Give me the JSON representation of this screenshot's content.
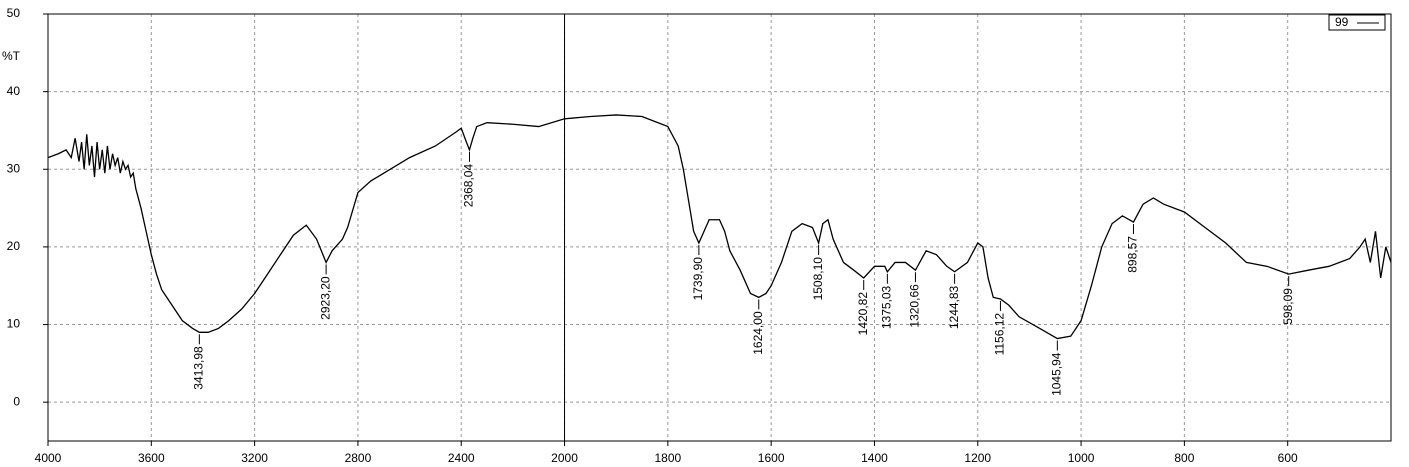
{
  "chart_data": {
    "type": "line",
    "ylabel": "%T",
    "x": [
      4000,
      3960,
      3930,
      3910,
      3895,
      3880,
      3870,
      3860,
      3850,
      3840,
      3830,
      3820,
      3810,
      3800,
      3790,
      3780,
      3770,
      3760,
      3750,
      3740,
      3730,
      3720,
      3710,
      3700,
      3690,
      3680,
      3670,
      3660,
      3640,
      3620,
      3600,
      3580,
      3560,
      3520,
      3480,
      3440,
      3413.98,
      3380,
      3340,
      3300,
      3250,
      3200,
      3150,
      3100,
      3050,
      3000,
      2960,
      2923.2,
      2900,
      2860,
      2840,
      2800,
      2750,
      2700,
      2600,
      2500,
      2420,
      2400,
      2380,
      2368.04,
      2355,
      2340,
      2300,
      2200,
      2100,
      2000,
      1950,
      1900,
      1850,
      1800,
      1780,
      1770,
      1760,
      1750,
      1739.9,
      1730,
      1720,
      1700,
      1690,
      1680,
      1660,
      1640,
      1624,
      1610,
      1600,
      1580,
      1560,
      1540,
      1520,
      1508.1,
      1500,
      1490,
      1480,
      1460,
      1440,
      1420.82,
      1400,
      1380,
      1375.03,
      1360,
      1340,
      1320.66,
      1300,
      1280,
      1260,
      1244.83,
      1220,
      1200,
      1190,
      1180,
      1170,
      1156.12,
      1140,
      1120,
      1080,
      1045.94,
      1020,
      1000,
      980,
      960,
      940,
      920,
      898.57,
      880,
      860,
      840,
      800,
      760,
      720,
      680,
      640,
      598.09,
      560,
      520,
      480,
      460,
      450,
      440,
      430,
      420,
      410,
      400
    ],
    "series": [
      {
        "name": "99",
        "color": "#000000",
        "values": [
          31.5,
          32,
          32.5,
          31.5,
          34,
          31,
          33.5,
          30,
          34.5,
          30.5,
          33,
          29,
          33.5,
          30,
          32.5,
          29.5,
          33,
          30,
          32,
          30.5,
          31.5,
          29.5,
          31,
          30,
          30.5,
          29,
          29.5,
          27.5,
          25,
          22,
          19,
          16.5,
          14.5,
          12.5,
          10.5,
          9.5,
          9,
          9,
          9.5,
          10.5,
          12,
          14,
          16.5,
          19,
          21.5,
          22.8,
          21,
          18,
          19.5,
          21,
          22.5,
          27,
          28.5,
          29.5,
          31.5,
          33,
          34.8,
          35.3,
          33.5,
          32.5,
          34,
          35.5,
          36,
          35.8,
          35.5,
          36.5,
          36.8,
          37,
          36.8,
          35.5,
          33,
          30,
          26,
          22,
          20.5,
          22,
          23.5,
          23.5,
          22,
          19.5,
          17,
          14,
          13.5,
          14,
          15,
          18,
          22,
          23,
          22.5,
          20.5,
          23,
          23.5,
          21,
          18,
          17,
          16,
          17.5,
          17.5,
          16.8,
          18,
          18,
          17,
          19.5,
          19,
          17.5,
          16.8,
          18,
          20.5,
          20,
          16,
          13.5,
          13.3,
          12.5,
          11,
          9.5,
          8.2,
          8.5,
          10.5,
          15,
          20,
          23,
          24,
          23.2,
          25.5,
          26.3,
          25.5,
          24.5,
          22.5,
          20.5,
          18,
          17.5,
          16.5,
          17,
          17.5,
          18.5,
          20,
          21,
          18,
          22,
          16,
          20,
          18
        ]
      }
    ],
    "peaks": [
      {
        "x": 3413.98,
        "y": 9,
        "label": "3413,98"
      },
      {
        "x": 2923.2,
        "y": 18,
        "label": "2923,20"
      },
      {
        "x": 2368.04,
        "y": 32.5,
        "label": "2368,04"
      },
      {
        "x": 1739.9,
        "y": 20.5,
        "label": "1739,90"
      },
      {
        "x": 1624,
        "y": 13.5,
        "label": "1624,00"
      },
      {
        "x": 1508.1,
        "y": 20.5,
        "label": "1508,10"
      },
      {
        "x": 1420.82,
        "y": 16,
        "label": "1420,82"
      },
      {
        "x": 1375.03,
        "y": 16.8,
        "label": "1375,03"
      },
      {
        "x": 1320.66,
        "y": 17,
        "label": "1320,66"
      },
      {
        "x": 1244.83,
        "y": 16.8,
        "label": "1244,83"
      },
      {
        "x": 1156.12,
        "y": 13.3,
        "label": "1156,12"
      },
      {
        "x": 1045.94,
        "y": 8.2,
        "label": "1045,94"
      },
      {
        "x": 898.57,
        "y": 23.2,
        "label": "898,57"
      },
      {
        "x": 598.09,
        "y": 16.5,
        "label": "598,09"
      }
    ],
    "xlim": [
      4000,
      400
    ],
    "x_break": 2000,
    "x_break_zoom": 2,
    "xticks": [
      4000,
      3600,
      3200,
      2800,
      2400,
      2000,
      1800,
      1600,
      1400,
      1200,
      1000,
      800,
      600
    ],
    "ylim": [
      -5,
      50
    ],
    "yticks": [
      0,
      10,
      20,
      30,
      40,
      50
    ],
    "grid": true,
    "legend": "upper right"
  }
}
